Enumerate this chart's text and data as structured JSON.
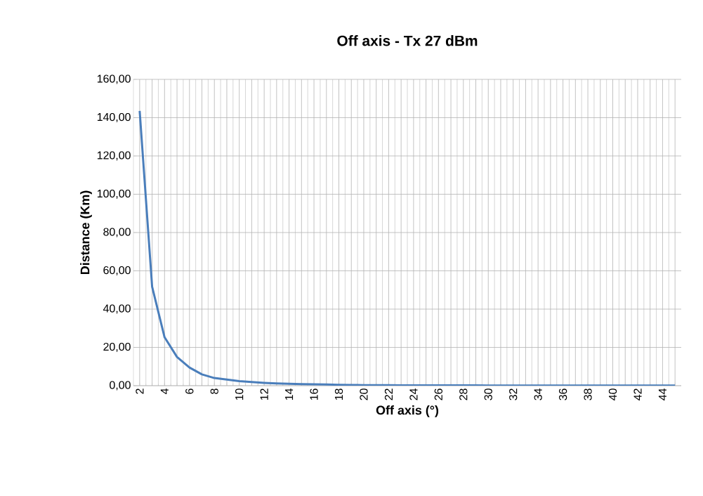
{
  "chart_data": {
    "type": "line",
    "title": "Off axis - Tx 27 dBm",
    "xlabel": "Off axis (°)",
    "ylabel": "Distance (Km)",
    "categories": [
      "2",
      null,
      "4",
      null,
      "6",
      null,
      "8",
      null,
      "10",
      null,
      "12",
      null,
      "14",
      null,
      "16",
      null,
      "18",
      null,
      "20",
      null,
      "22",
      null,
      "24",
      null,
      "26",
      null,
      "28",
      null,
      "30",
      null,
      "32",
      null,
      "34",
      null,
      "36",
      null,
      "38",
      null,
      "40",
      null,
      "42",
      null,
      "44",
      null
    ],
    "series": [
      {
        "color": "#4a7ebb",
        "values": [
          143.5,
          51.7,
          25.3,
          15,
          9.5,
          5.9,
          4,
          3.2,
          2.4,
          1.9,
          1.5,
          1.2,
          1,
          0.8,
          0.7,
          0.6,
          0.5,
          0.4,
          0.3,
          0.3,
          0.3,
          0.2,
          0.2,
          0.2,
          0.2,
          0.2,
          0.2,
          0.2,
          0.1,
          0.1,
          0.1,
          0.1,
          0.1,
          0.1,
          0.1,
          0.1,
          0.1,
          0.1,
          0.1,
          0.1,
          0.1,
          0.1,
          0.1,
          0.1
        ]
      }
    ],
    "ylim": [
      0,
      160
    ],
    "yticks": [
      {
        "value": 0,
        "label": "0,00"
      },
      {
        "value": 20,
        "label": "20,00"
      },
      {
        "value": 40,
        "label": "40,00"
      },
      {
        "value": 60,
        "label": "60,00"
      },
      {
        "value": 80,
        "label": "80,00"
      },
      {
        "value": 100,
        "label": "100,00"
      },
      {
        "value": 120,
        "label": "120,00"
      },
      {
        "value": 140,
        "label": "140,00"
      },
      {
        "value": 160,
        "label": "160,00"
      }
    ],
    "grid": true,
    "marker": "none",
    "line_style": "solid"
  }
}
